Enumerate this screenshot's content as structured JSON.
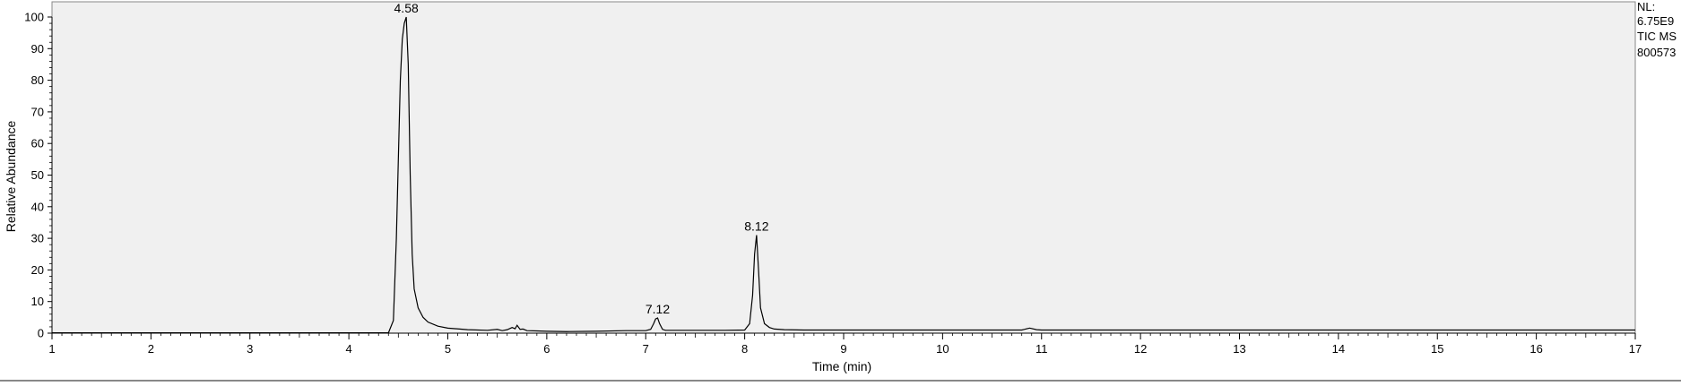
{
  "chart_data": {
    "type": "line",
    "xlabel": "Time (min)",
    "ylabel": "Relative Abundance",
    "xlim": [
      1,
      17
    ],
    "ylim": [
      0,
      100
    ],
    "x_ticks": [
      1,
      2,
      3,
      4,
      5,
      6,
      7,
      8,
      9,
      10,
      11,
      12,
      13,
      14,
      15,
      16,
      17
    ],
    "y_ticks": [
      0,
      10,
      20,
      30,
      40,
      50,
      60,
      70,
      80,
      90,
      100
    ],
    "grid": false,
    "colors": {
      "plot_background": "#f0f0f0",
      "line": "#000000"
    },
    "series": [
      {
        "x": [
          1.0,
          2.0,
          3.0,
          4.0,
          4.4,
          4.45,
          4.48,
          4.5,
          4.52,
          4.54,
          4.56,
          4.58,
          4.6,
          4.62,
          4.64,
          4.66,
          4.7,
          4.75,
          4.8,
          4.9,
          5.0,
          5.2,
          5.4,
          5.5,
          5.55,
          5.6,
          5.65,
          5.68,
          5.7,
          5.73,
          5.76,
          5.8,
          5.9,
          6.0,
          6.2,
          6.5,
          6.8,
          7.0,
          7.05,
          7.08,
          7.1,
          7.12,
          7.14,
          7.17,
          7.2,
          7.4,
          7.6,
          7.8,
          8.0,
          8.05,
          8.08,
          8.1,
          8.12,
          8.14,
          8.16,
          8.2,
          8.25,
          8.3,
          8.4,
          8.6,
          9.0,
          10.0,
          10.8,
          10.88,
          10.95,
          11.0,
          12.0,
          13.0,
          14.0,
          15.0,
          16.0,
          17.0
        ],
        "y": [
          0.1,
          0.1,
          0.1,
          0.1,
          0.1,
          4,
          30,
          55,
          80,
          93,
          98,
          100,
          85,
          50,
          25,
          14,
          8,
          5,
          3.5,
          2.2,
          1.6,
          1.1,
          0.9,
          1.2,
          0.8,
          1.1,
          1.8,
          1.4,
          2.5,
          1.2,
          1.3,
          0.8,
          0.7,
          0.6,
          0.5,
          0.6,
          0.8,
          0.8,
          1.2,
          3,
          4.5,
          4.8,
          3,
          1.2,
          0.9,
          0.9,
          0.9,
          0.9,
          1.0,
          3,
          12,
          25,
          31,
          20,
          8,
          3,
          1.8,
          1.3,
          1.1,
          1.0,
          1.0,
          1.0,
          1.0,
          1.6,
          1.1,
          1.0,
          1.0,
          1.0,
          1.0,
          1.0,
          1.0,
          1.0
        ]
      }
    ],
    "annotations": [
      {
        "x": 4.58,
        "y": 100,
        "text": "4.58"
      },
      {
        "x": 7.12,
        "y": 4.8,
        "text": "7.12"
      },
      {
        "x": 8.12,
        "y": 31,
        "text": "8.12"
      }
    ]
  },
  "side_info": {
    "nl_label": "NL:",
    "nl_value": "6.75E9",
    "trace_label": "TIC  MS",
    "sample_id": "800573"
  }
}
